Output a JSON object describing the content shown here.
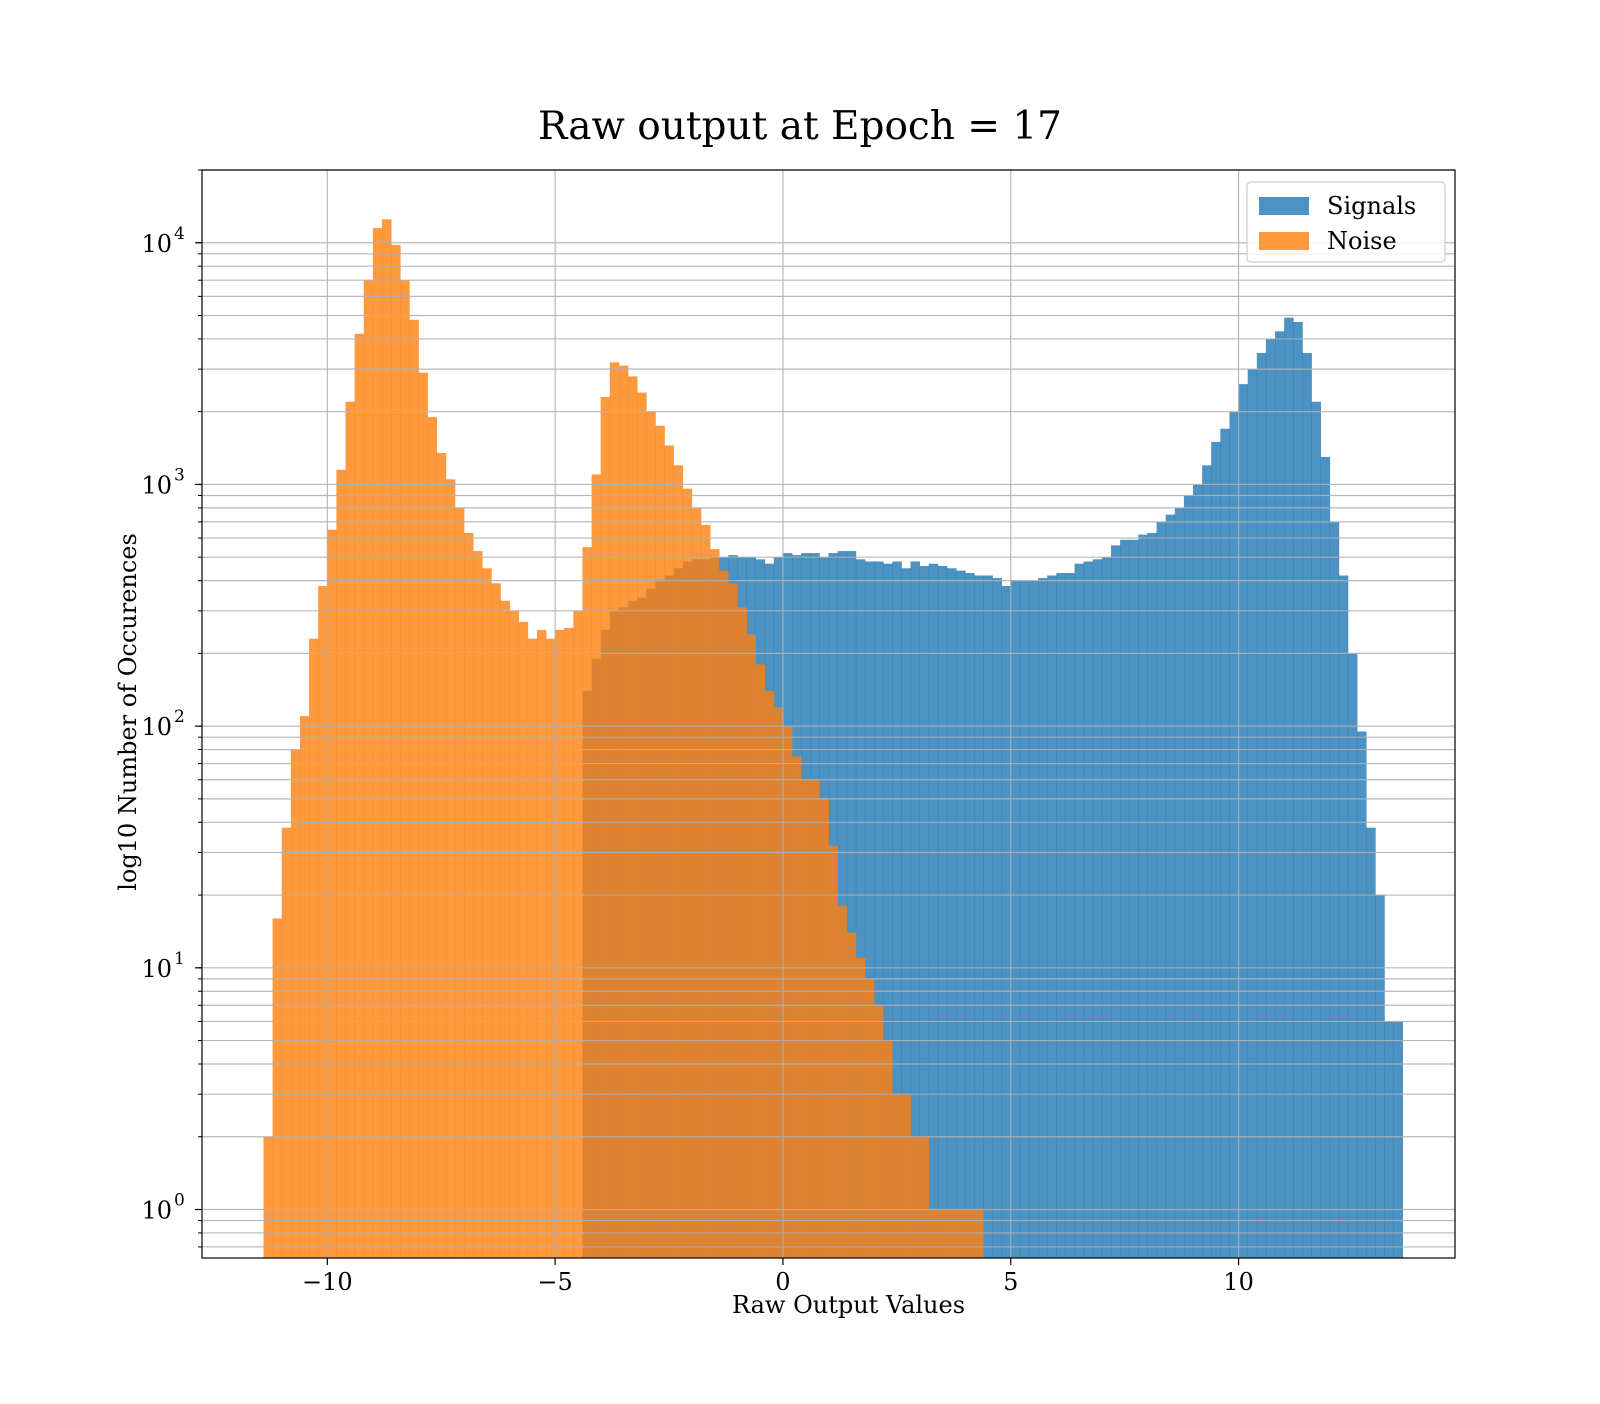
{
  "chart_data": {
    "type": "bar",
    "title": "Raw output at Epoch = 17",
    "xlabel": "Raw Output Values",
    "ylabel": "log10 Number of Occurences",
    "x_ticks": [
      -10,
      -5,
      0,
      5,
      10
    ],
    "x_tick_labels": [
      "−10",
      "−5",
      "0",
      "5",
      "10"
    ],
    "xlim": [
      -12.75,
      14.75
    ],
    "y_scale": "log",
    "ylim": [
      0.63,
      20000
    ],
    "y_ticks": [
      {
        "value": 1,
        "base": "10",
        "exp": "0"
      },
      {
        "value": 10,
        "base": "10",
        "exp": "1"
      },
      {
        "value": 100,
        "base": "10",
        "exp": "2"
      },
      {
        "value": 1000,
        "base": "10",
        "exp": "3"
      },
      {
        "value": 10000,
        "base": "10",
        "exp": "4"
      }
    ],
    "grid": true,
    "legend_position": "top-right",
    "series": [
      {
        "name": "Signals",
        "color": "#1f77b4",
        "opacity": 0.8,
        "x": [
          -4.3,
          -4.1,
          -3.9,
          -3.7,
          -3.5,
          -3.3,
          -3.1,
          -2.9,
          -2.7,
          -2.5,
          -2.3,
          -2.1,
          -1.9,
          -1.7,
          -1.5,
          -1.3,
          -1.1,
          -0.9,
          -0.7,
          -0.5,
          -0.3,
          -0.1,
          0.1,
          0.3,
          0.5,
          0.7,
          0.9,
          1.1,
          1.3,
          1.5,
          1.7,
          1.9,
          2.1,
          2.3,
          2.5,
          2.7,
          2.9,
          3.1,
          3.3,
          3.5,
          3.7,
          3.9,
          4.1,
          4.3,
          4.5,
          4.7,
          4.9,
          5.1,
          5.3,
          5.5,
          5.7,
          5.9,
          6.1,
          6.3,
          6.5,
          6.7,
          6.9,
          7.1,
          7.3,
          7.5,
          7.7,
          7.9,
          8.1,
          8.3,
          8.5,
          8.7,
          8.9,
          9.1,
          9.3,
          9.5,
          9.7,
          9.9,
          10.1,
          10.3,
          10.5,
          10.7,
          10.9,
          11.1,
          11.3,
          11.5,
          11.7,
          11.9,
          12.1,
          12.3,
          12.5,
          12.7,
          12.9,
          13.1,
          13.3,
          13.5
        ],
        "values": [
          140,
          190,
          250,
          300,
          310,
          330,
          340,
          370,
          400,
          420,
          450,
          480,
          490,
          490,
          500,
          500,
          510,
          500,
          500,
          490,
          470,
          500,
          520,
          510,
          520,
          520,
          500,
          520,
          530,
          530,
          490,
          480,
          480,
          470,
          480,
          450,
          480,
          460,
          470,
          460,
          450,
          440,
          430,
          420,
          420,
          410,
          380,
          400,
          400,
          400,
          410,
          420,
          430,
          430,
          470,
          480,
          490,
          500,
          560,
          590,
          590,
          620,
          630,
          700,
          750,
          800,
          900,
          1000,
          1200,
          1500,
          1700,
          2000,
          2600,
          3000,
          3500,
          4000,
          4300,
          4900,
          4700,
          3500,
          2200,
          1300,
          700,
          420,
          200,
          95,
          38,
          20,
          6,
          6
        ]
      },
      {
        "name": "Noise",
        "color": "#ff7f0e",
        "opacity": 0.8,
        "x": [
          -11.3,
          -11.1,
          -10.9,
          -10.7,
          -10.5,
          -10.3,
          -10.1,
          -9.9,
          -9.7,
          -9.5,
          -9.3,
          -9.1,
          -8.9,
          -8.7,
          -8.5,
          -8.3,
          -8.1,
          -7.9,
          -7.7,
          -7.5,
          -7.3,
          -7.1,
          -6.9,
          -6.7,
          -6.5,
          -6.3,
          -6.1,
          -5.9,
          -5.7,
          -5.5,
          -5.3,
          -5.1,
          -4.9,
          -4.7,
          -4.5,
          -4.3,
          -4.1,
          -3.9,
          -3.7,
          -3.5,
          -3.3,
          -3.1,
          -2.9,
          -2.7,
          -2.5,
          -2.3,
          -2.1,
          -1.9,
          -1.7,
          -1.5,
          -1.3,
          -1.1,
          -0.9,
          -0.7,
          -0.5,
          -0.3,
          -0.1,
          0.1,
          0.3,
          0.5,
          0.7,
          0.9,
          1.1,
          1.3,
          1.5,
          1.7,
          1.9,
          2.1,
          2.3,
          2.5,
          2.7,
          2.9,
          3.1,
          3.3,
          3.5,
          3.7,
          3.9,
          4.1,
          4.3
        ],
        "values": [
          2,
          16,
          38,
          80,
          110,
          230,
          380,
          650,
          1150,
          2200,
          4200,
          7000,
          11500,
          12500,
          9800,
          7000,
          4800,
          2900,
          1900,
          1350,
          1050,
          800,
          630,
          530,
          450,
          390,
          330,
          300,
          270,
          230,
          250,
          230,
          250,
          255,
          300,
          550,
          1100,
          2300,
          3200,
          3100,
          2800,
          2400,
          2000,
          1750,
          1450,
          1200,
          960,
          800,
          680,
          540,
          440,
          390,
          310,
          240,
          180,
          140,
          120,
          100,
          75,
          60,
          60,
          50,
          32,
          18,
          14,
          11,
          9,
          7,
          5,
          3,
          3,
          2,
          2,
          1,
          1,
          1,
          1,
          1,
          1
        ]
      }
    ]
  }
}
